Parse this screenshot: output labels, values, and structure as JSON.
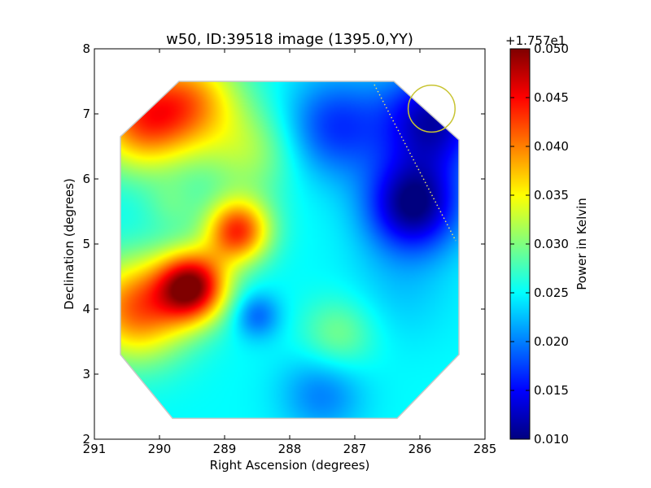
{
  "chart_data": {
    "type": "heatmap",
    "title": "w50, ID:39518 image (1395.0,YY)",
    "xlabel": "Right Ascension (degrees)",
    "ylabel": "Declination (degrees)",
    "xlim": [
      291,
      285
    ],
    "ylim": [
      2,
      8
    ],
    "x_ticks": [
      "291",
      "290",
      "289",
      "288",
      "287",
      "286",
      "285"
    ],
    "y_ticks": [
      "2",
      "3",
      "4",
      "5",
      "6",
      "7",
      "8"
    ],
    "colormap": "jet",
    "colorbar": {
      "label": "Power in Kelvin",
      "offset_text": "+1.757e1",
      "range": [
        0.01,
        0.05
      ],
      "ticks": [
        "0.010",
        "0.015",
        "0.020",
        "0.025",
        "0.030",
        "0.035",
        "0.040",
        "0.045",
        "0.050"
      ],
      "stops": [
        "#00007f",
        "#0000ff",
        "#007fff",
        "#00ffff",
        "#7fff7f",
        "#ffff00",
        "#ff7f00",
        "#ff0000",
        "#7f0000"
      ]
    },
    "footprint_polygon": [
      [
        289.7,
        7.5
      ],
      [
        286.4,
        7.5
      ],
      [
        285.4,
        6.6
      ],
      [
        285.4,
        3.3
      ],
      [
        286.35,
        2.32
      ],
      [
        289.8,
        2.32
      ],
      [
        290.6,
        3.3
      ],
      [
        290.6,
        6.65
      ]
    ],
    "field": {
      "baseline": 0.025,
      "features": [
        {
          "ra": 289.5,
          "dec": 4.35,
          "value": 0.048,
          "sigma": 0.38
        },
        {
          "ra": 290.35,
          "dec": 4.0,
          "value": 0.041,
          "sigma": 0.55
        },
        {
          "ra": 290.3,
          "dec": 6.9,
          "value": 0.04,
          "sigma": 0.55
        },
        {
          "ra": 288.8,
          "dec": 5.2,
          "value": 0.043,
          "sigma": 0.35
        },
        {
          "ra": 289.5,
          "dec": 7.2,
          "value": 0.037,
          "sigma": 0.55
        },
        {
          "ra": 288.5,
          "dec": 3.9,
          "value": 0.019,
          "sigma": 0.25
        },
        {
          "ra": 287.5,
          "dec": 2.7,
          "value": 0.02,
          "sigma": 0.45
        },
        {
          "ra": 287.25,
          "dec": 3.6,
          "value": 0.03,
          "sigma": 0.4
        },
        {
          "ra": 289.8,
          "dec": 5.6,
          "value": 0.028,
          "sigma": 0.3
        },
        {
          "ra": 288.6,
          "dec": 6.4,
          "value": 0.031,
          "sigma": 0.5
        },
        {
          "ra": 287.3,
          "dec": 6.8,
          "value": 0.017,
          "sigma": 0.55
        },
        {
          "ra": 286.1,
          "dec": 5.6,
          "value": 0.01,
          "sigma": 0.5
        },
        {
          "ra": 285.8,
          "dec": 6.9,
          "value": 0.012,
          "sigma": 0.55
        },
        {
          "ra": 286.3,
          "dec": 4.3,
          "value": 0.023,
          "sigma": 0.6
        }
      ]
    },
    "annotations": {
      "circle": {
        "ra": 285.82,
        "dec": 7.08,
        "radius_deg": 0.36,
        "color": "#c8c432"
      },
      "dotted_line": {
        "from": [
          286.7,
          7.45
        ],
        "to": [
          285.45,
          5.05
        ],
        "color": "#e8e070"
      }
    }
  }
}
